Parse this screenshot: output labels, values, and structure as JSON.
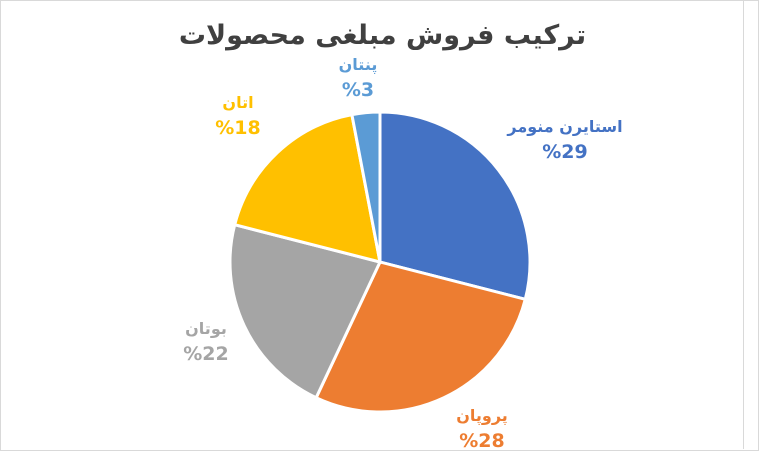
{
  "chart_data": {
    "type": "pie",
    "title": "ترکیب فروش مبلغی محصولات",
    "categories": [
      "استایرن منومر",
      "پروپان",
      "بوتان",
      "اتان",
      "پنتان"
    ],
    "values": [
      29,
      28,
      22,
      18,
      3
    ],
    "value_labels": [
      "%29",
      "%28",
      "%22",
      "%18",
      "%3"
    ],
    "colors": [
      "#4472c4",
      "#ed7d31",
      "#a5a5a5",
      "#ffc000",
      "#5b9bd5"
    ],
    "start": "12 o'clock, clockwise",
    "legend": "none; data labels outside slices"
  }
}
